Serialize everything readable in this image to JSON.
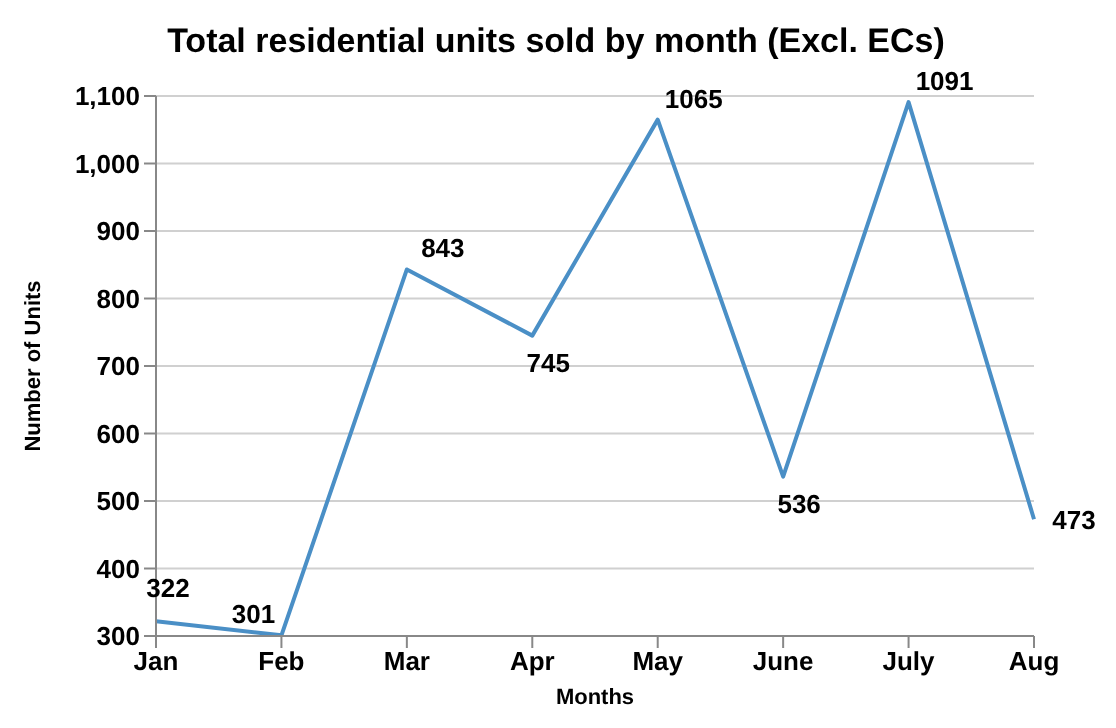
{
  "chart_data": {
    "type": "line",
    "title": "Total residential units sold by month (Excl. ECs)",
    "xlabel": "Months",
    "ylabel": "Number of Units",
    "categories": [
      "Jan",
      "Feb",
      "Mar",
      "Apr",
      "May",
      "June",
      "July",
      "Aug"
    ],
    "series": [
      {
        "color": "#4a8fc6",
        "values": [
          322,
          301,
          843,
          745,
          1065,
          536,
          1091,
          473
        ]
      }
    ],
    "ylim": [
      300,
      1100
    ],
    "yticks": [
      300,
      400,
      500,
      600,
      700,
      800,
      900,
      {
        "value": 1000,
        "label": "1,000"
      },
      {
        "value": 1100,
        "label": "1,100"
      }
    ],
    "grid": "y",
    "data_labels": true,
    "marker": "none",
    "line_style": "solid",
    "legend": false
  }
}
